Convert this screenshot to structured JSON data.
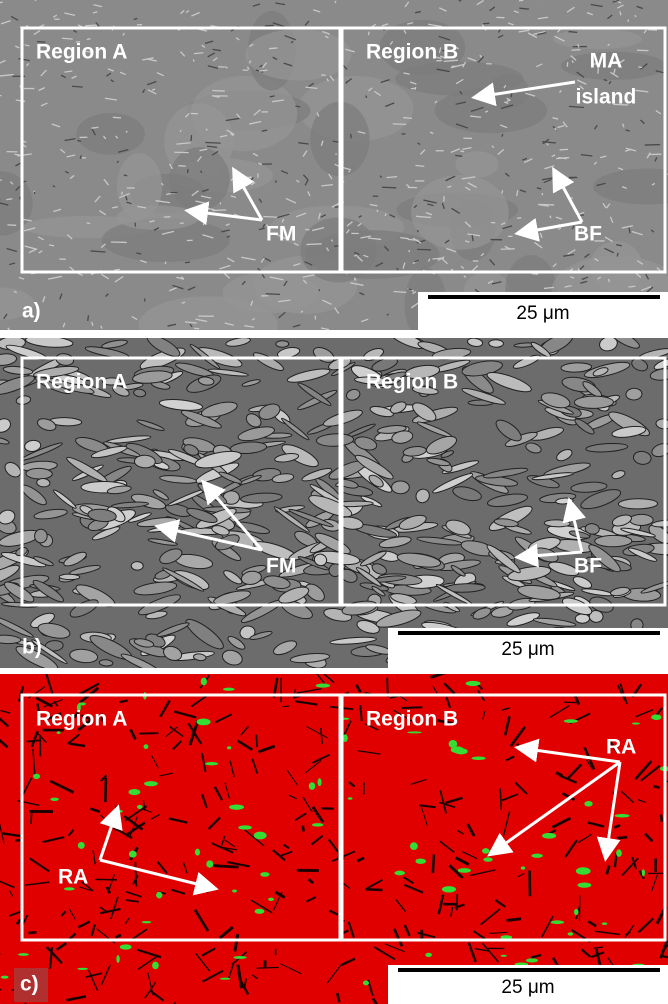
{
  "panels": [
    {
      "label": "a)",
      "regions": [
        "Region A",
        "Region B"
      ],
      "annotations": [
        "FM",
        "MA",
        "island",
        "BF"
      ],
      "scale_bar": "25 μm"
    },
    {
      "label": "b)",
      "regions": [
        "Region A",
        "Region B"
      ],
      "annotations": [
        "FM",
        "BF"
      ],
      "scale_bar": "25 μm"
    },
    {
      "label": "c)",
      "regions": [
        "Region A",
        "Region B"
      ],
      "annotations": [
        "RA",
        "RA"
      ],
      "scale_bar": "25 μm"
    }
  ]
}
